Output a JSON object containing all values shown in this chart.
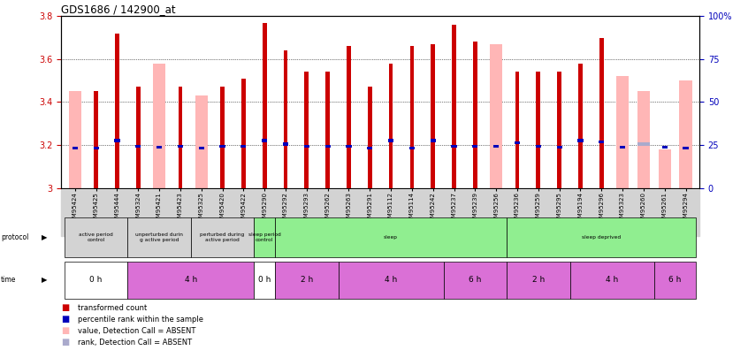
{
  "title": "GDS1686 / 142900_at",
  "samples": [
    "GSM95424",
    "GSM95425",
    "GSM95444",
    "GSM95324",
    "GSM95421",
    "GSM95423",
    "GSM95325",
    "GSM95420",
    "GSM95422",
    "GSM95290",
    "GSM95292",
    "GSM95293",
    "GSM95262",
    "GSM95263",
    "GSM95291",
    "GSM95112",
    "GSM95114",
    "GSM95242",
    "GSM95237",
    "GSM95239",
    "GSM95256",
    "GSM95236",
    "GSM95259",
    "GSM95295",
    "GSM95194",
    "GSM95296",
    "GSM95323",
    "GSM95260",
    "GSM95261",
    "GSM95294"
  ],
  "red_values": [
    null,
    3.45,
    3.72,
    3.47,
    null,
    3.47,
    null,
    3.47,
    3.51,
    3.77,
    3.64,
    3.54,
    3.54,
    3.66,
    3.47,
    3.58,
    3.66,
    3.67,
    3.76,
    3.68,
    null,
    3.54,
    3.54,
    3.54,
    3.58,
    3.7,
    null,
    null,
    null,
    null
  ],
  "pink_values": [
    3.45,
    null,
    null,
    null,
    3.58,
    null,
    3.43,
    null,
    null,
    null,
    null,
    null,
    null,
    null,
    null,
    null,
    null,
    null,
    null,
    null,
    3.67,
    null,
    null,
    null,
    null,
    null,
    3.52,
    3.45,
    3.18,
    3.5
  ],
  "blue_values": [
    3.185,
    3.185,
    3.22,
    3.195,
    3.19,
    3.195,
    3.185,
    3.195,
    3.195,
    3.22,
    3.205,
    3.195,
    3.195,
    3.195,
    3.185,
    3.22,
    3.185,
    3.22,
    3.195,
    3.195,
    3.195,
    3.21,
    3.195,
    3.19,
    3.22,
    3.215,
    3.19,
    null,
    3.19,
    3.185
  ],
  "light_blue_values": [
    null,
    null,
    null,
    null,
    null,
    null,
    null,
    null,
    null,
    null,
    null,
    null,
    null,
    null,
    null,
    null,
    null,
    null,
    null,
    null,
    null,
    null,
    null,
    null,
    null,
    null,
    null,
    3.205,
    null,
    null
  ],
  "ylim": [
    3.0,
    3.8
  ],
  "yticks_left": [
    3.0,
    3.2,
    3.4,
    3.6,
    3.8
  ],
  "ytick_labels_left": [
    "3",
    "3.2",
    "3.4",
    "3.6",
    "3.8"
  ],
  "yticks_right": [
    0,
    25,
    50,
    75,
    100
  ],
  "ytick_labels_right": [
    "0",
    "25",
    "50",
    "75",
    "100%"
  ],
  "red_color": "#cc0000",
  "pink_color": "#ffb6b6",
  "blue_color": "#0000bb",
  "light_blue_color": "#aaaacc",
  "right_axis_color": "#0000bb",
  "left_axis_color": "#cc0000",
  "protocol_data": [
    [
      0,
      2,
      "#d3d3d3",
      "active period\ncontrol"
    ],
    [
      3,
      5,
      "#d3d3d3",
      "unperturbed durin\ng active period"
    ],
    [
      6,
      8,
      "#d3d3d3",
      "perturbed during\nactive period"
    ],
    [
      9,
      9,
      "#90EE90",
      "sleep period\ncontrol"
    ],
    [
      10,
      20,
      "#90EE90",
      "sleep"
    ],
    [
      21,
      29,
      "#90EE90",
      "sleep deprived"
    ]
  ],
  "time_data": [
    [
      0,
      2,
      "#ffffff",
      "0 h"
    ],
    [
      3,
      8,
      "#DA70D6",
      "4 h"
    ],
    [
      9,
      9,
      "#ffffff",
      "0 h"
    ],
    [
      10,
      12,
      "#DA70D6",
      "2 h"
    ],
    [
      13,
      17,
      "#DA70D6",
      "4 h"
    ],
    [
      18,
      20,
      "#DA70D6",
      "6 h"
    ],
    [
      21,
      23,
      "#DA70D6",
      "2 h"
    ],
    [
      24,
      27,
      "#DA70D6",
      "4 h"
    ],
    [
      28,
      29,
      "#DA70D6",
      "6 h"
    ]
  ],
  "legend_items": [
    [
      "#cc0000",
      "transformed count"
    ],
    [
      "#0000bb",
      "percentile rank within the sample"
    ],
    [
      "#ffb6b6",
      "value, Detection Call = ABSENT"
    ],
    [
      "#aaaacc",
      "rank, Detection Call = ABSENT"
    ]
  ]
}
